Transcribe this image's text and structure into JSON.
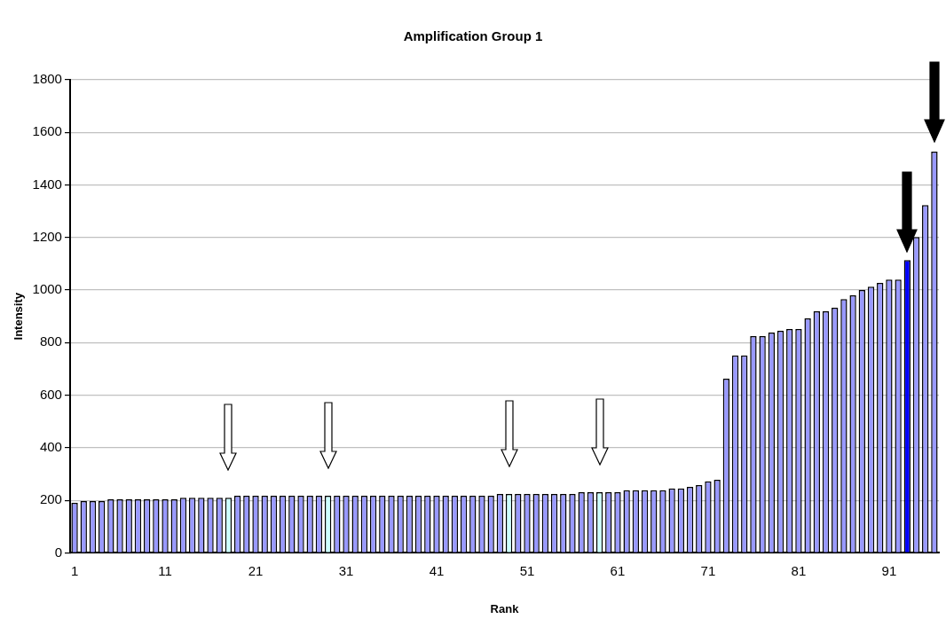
{
  "chart_data": {
    "type": "bar",
    "title": "Amplification Group 1",
    "xlabel": "Rank",
    "ylabel": "Intensity",
    "categories": [
      "1",
      null,
      null,
      null,
      null,
      null,
      null,
      null,
      null,
      null,
      "11",
      null,
      null,
      null,
      null,
      null,
      null,
      null,
      null,
      null,
      "21",
      null,
      null,
      null,
      null,
      null,
      null,
      null,
      null,
      null,
      "31",
      null,
      null,
      null,
      null,
      null,
      null,
      null,
      null,
      null,
      "41",
      null,
      null,
      null,
      null,
      null,
      null,
      null,
      null,
      null,
      "51",
      null,
      null,
      null,
      null,
      null,
      null,
      null,
      null,
      null,
      "61",
      null,
      null,
      null,
      null,
      null,
      null,
      null,
      null,
      null,
      "71",
      null,
      null,
      null,
      null,
      null,
      null,
      null,
      null,
      null,
      "81",
      null,
      null,
      null,
      null,
      null,
      null,
      null,
      null,
      null,
      "91",
      null,
      null,
      null,
      null,
      null
    ],
    "values": [
      190,
      197,
      197,
      197,
      204,
      204,
      204,
      204,
      204,
      204,
      204,
      204,
      210,
      210,
      210,
      210,
      210,
      210,
      217,
      217,
      217,
      217,
      217,
      217,
      217,
      217,
      217,
      217,
      217,
      217,
      217,
      217,
      217,
      217,
      217,
      217,
      217,
      217,
      217,
      217,
      217,
      217,
      217,
      217,
      217,
      217,
      217,
      224,
      224,
      224,
      224,
      224,
      224,
      224,
      224,
      224,
      231,
      231,
      231,
      231,
      231,
      238,
      238,
      238,
      238,
      238,
      245,
      245,
      251,
      258,
      272,
      278,
      663,
      751,
      751,
      825,
      825,
      838,
      845,
      852,
      852,
      892,
      919,
      919,
      933,
      966,
      980,
      1000,
      1013,
      1027,
      1040,
      1040,
      1114,
      1202,
      1323,
      1527
    ],
    "colors": [
      "#9999ff",
      "#9999ff",
      "#9999ff",
      "#9999ff",
      "#9999ff",
      "#9999ff",
      "#9999ff",
      "#9999ff",
      "#9999ff",
      "#9999ff",
      "#9999ff",
      "#9999ff",
      "#9999ff",
      "#9999ff",
      "#9999ff",
      "#9999ff",
      "#9999ff",
      "#ccffff",
      "#9999ff",
      "#9999ff",
      "#9999ff",
      "#9999ff",
      "#9999ff",
      "#9999ff",
      "#9999ff",
      "#9999ff",
      "#9999ff",
      "#9999ff",
      "#ccffff",
      "#9999ff",
      "#9999ff",
      "#9999ff",
      "#9999ff",
      "#9999ff",
      "#9999ff",
      "#9999ff",
      "#9999ff",
      "#9999ff",
      "#9999ff",
      "#9999ff",
      "#9999ff",
      "#9999ff",
      "#9999ff",
      "#9999ff",
      "#9999ff",
      "#9999ff",
      "#9999ff",
      "#9999ff",
      "#ccffff",
      "#9999ff",
      "#9999ff",
      "#9999ff",
      "#9999ff",
      "#9999ff",
      "#9999ff",
      "#9999ff",
      "#9999ff",
      "#9999ff",
      "#ccffff",
      "#9999ff",
      "#9999ff",
      "#9999ff",
      "#9999ff",
      "#9999ff",
      "#9999ff",
      "#9999ff",
      "#9999ff",
      "#9999ff",
      "#9999ff",
      "#9999ff",
      "#9999ff",
      "#9999ff",
      "#9999ff",
      "#9999ff",
      "#9999ff",
      "#9999ff",
      "#9999ff",
      "#9999ff",
      "#9999ff",
      "#9999ff",
      "#9999ff",
      "#9999ff",
      "#9999ff",
      "#9999ff",
      "#9999ff",
      "#9999ff",
      "#9999ff",
      "#9999ff",
      "#9999ff",
      "#9999ff",
      "#9999ff",
      "#9999ff",
      "#0000ff",
      "#9999ff",
      "#9999ff",
      "#9999ff"
    ],
    "ylim": [
      0,
      1800
    ],
    "yticks": [
      0,
      200,
      400,
      600,
      800,
      1000,
      1200,
      1400,
      1600,
      1800
    ],
    "grid": "y"
  }
}
